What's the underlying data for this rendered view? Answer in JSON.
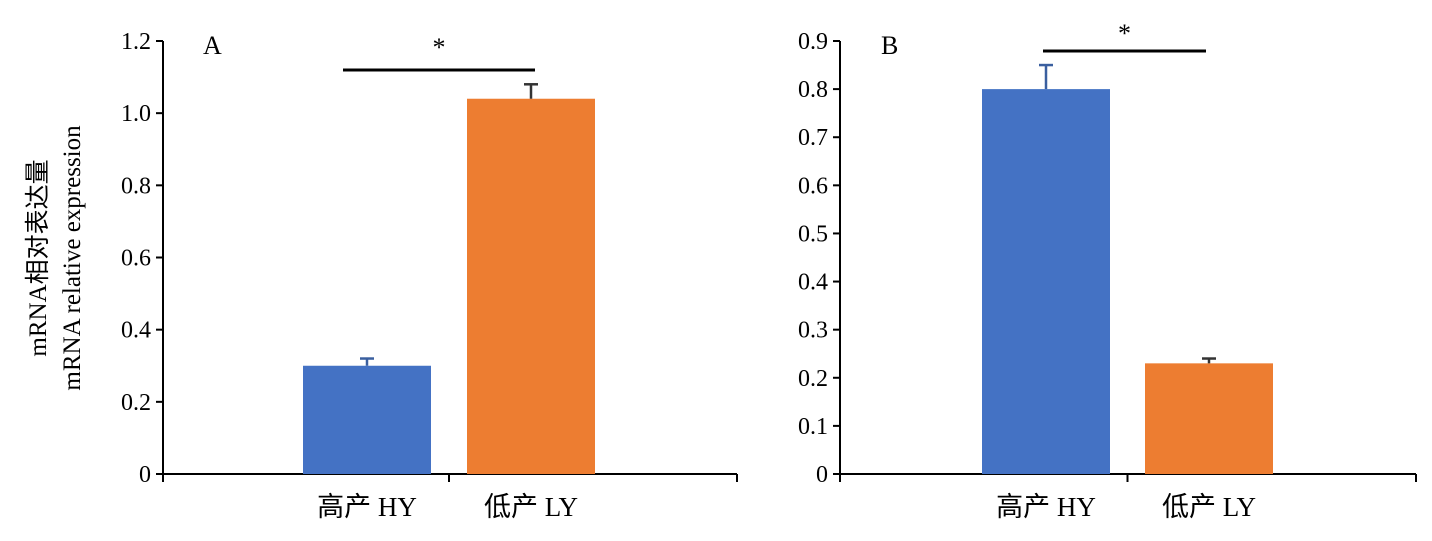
{
  "ylabel": {
    "line1": "mRNA相对表达量",
    "line2": "mRNA relative expression"
  },
  "chart_data": [
    {
      "type": "bar",
      "panel_label": "A",
      "categories": [
        "高产 HY",
        "低产 LY"
      ],
      "values": [
        0.3,
        1.04
      ],
      "errors": [
        0.02,
        0.04
      ],
      "colors": [
        "#4472C4",
        "#ED7D31"
      ],
      "ylim": [
        0,
        1.2
      ],
      "yticks": [
        0,
        0.2,
        0.4,
        0.6,
        0.8,
        1.0,
        1.2
      ],
      "ytick_labels": [
        "0",
        "0.2",
        "0.4",
        "0.6",
        "0.8",
        "1.0",
        "1.2"
      ],
      "significance": "*",
      "grid": false
    },
    {
      "type": "bar",
      "panel_label": "B",
      "categories": [
        "高产 HY",
        "低产 LY"
      ],
      "values": [
        0.8,
        0.23
      ],
      "errors": [
        0.05,
        0.01
      ],
      "colors": [
        "#4472C4",
        "#ED7D31"
      ],
      "ylim": [
        0,
        0.9
      ],
      "yticks": [
        0,
        0.1,
        0.2,
        0.3,
        0.4,
        0.5,
        0.6,
        0.7,
        0.8,
        0.9
      ],
      "ytick_labels": [
        "0",
        "0.1",
        "0.2",
        "0.3",
        "0.4",
        "0.5",
        "0.6",
        "0.7",
        "0.8",
        "0.9"
      ],
      "significance": "*",
      "grid": false
    }
  ]
}
